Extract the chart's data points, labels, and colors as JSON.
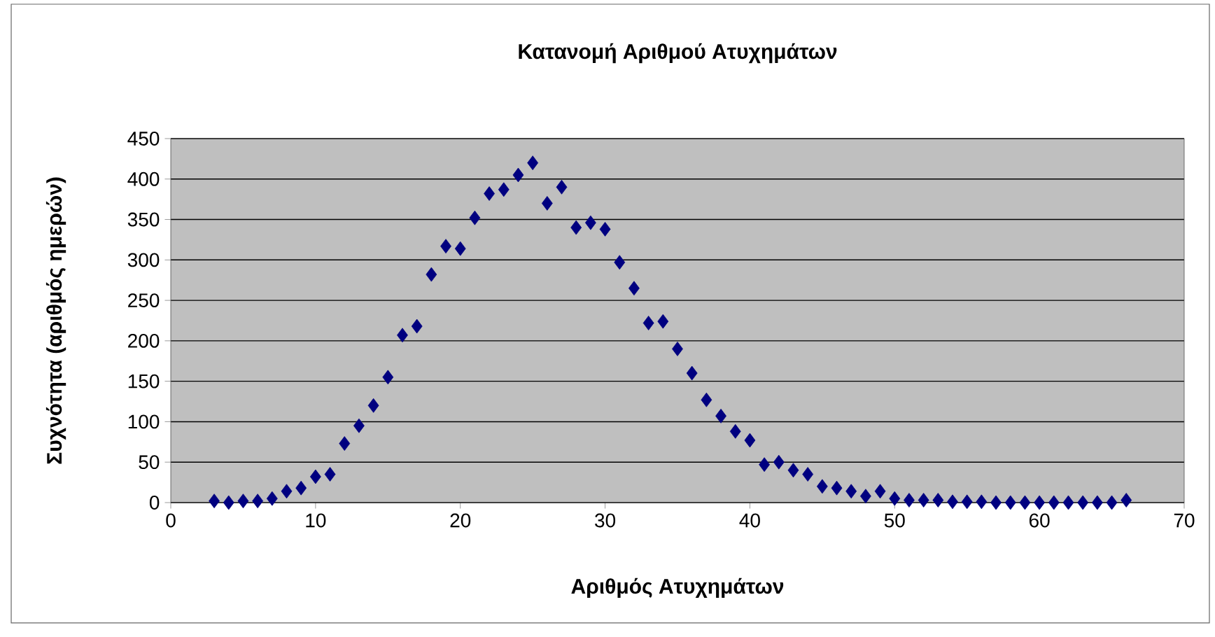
{
  "chart_data": {
    "type": "scatter",
    "title": "Κατανομή Αριθμού Ατυχημάτων",
    "xlabel": "Αριθμός Ατυχημάτων",
    "ylabel": "Συχνότητα (αριθμός ημερών)",
    "x": [
      3,
      4,
      5,
      6,
      7,
      8,
      9,
      10,
      11,
      12,
      13,
      14,
      15,
      16,
      17,
      18,
      19,
      20,
      21,
      22,
      23,
      24,
      25,
      26,
      27,
      28,
      29,
      30,
      31,
      32,
      33,
      34,
      35,
      36,
      37,
      38,
      39,
      40,
      41,
      42,
      43,
      44,
      45,
      46,
      47,
      48,
      49,
      50,
      51,
      52,
      53,
      54,
      55,
      56,
      57,
      58,
      59,
      60,
      61,
      62,
      63,
      64,
      65,
      66
    ],
    "values": [
      2,
      0,
      2,
      2,
      5,
      14,
      18,
      32,
      35,
      73,
      95,
      120,
      155,
      207,
      218,
      282,
      317,
      314,
      352,
      382,
      387,
      405,
      420,
      370,
      390,
      340,
      346,
      338,
      297,
      265,
      222,
      224,
      190,
      160,
      127,
      107,
      88,
      77,
      47,
      50,
      40,
      35,
      20,
      18,
      14,
      8,
      14,
      5,
      3,
      3,
      3,
      1,
      1,
      1,
      0,
      0,
      0,
      0,
      0,
      0,
      0,
      0,
      0,
      3
    ],
    "color": "#000080",
    "marker": "diamond",
    "grid": "y",
    "xlim": [
      0,
      70
    ],
    "xticks": [
      0,
      10,
      20,
      30,
      40,
      50,
      60,
      70
    ],
    "ylim": [
      0,
      450
    ],
    "yticks": [
      0,
      50,
      100,
      150,
      200,
      250,
      300,
      350,
      400,
      450
    ]
  }
}
